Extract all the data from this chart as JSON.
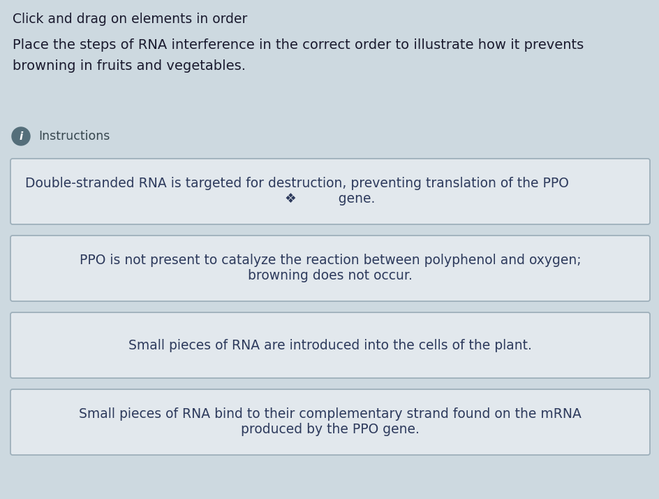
{
  "background_color": "#cdd9e0",
  "title_line1": "Click and drag on elements in order",
  "title_line2": "Place the steps of RNA interference in the correct order to illustrate how it prevents",
  "title_line3": "browning in fruits and vegetables.",
  "instructions_label": "Instructions",
  "cards": [
    {
      "line1": "Double-stranded RNA is targeted for destruction, preventing translation of the PPO",
      "line2": "❖          gene.",
      "text_align": "left",
      "bg_color": "#e2e8ed",
      "border_color": "#9eb0bb",
      "text_color": "#2d3a5c"
    },
    {
      "line1": "PPO is not present to catalyze the reaction between polyphenol and oxygen;",
      "line2": "browning does not occur.",
      "text_align": "center",
      "bg_color": "#e2e8ed",
      "border_color": "#9eb0bb",
      "text_color": "#2d3a5c"
    },
    {
      "line1": "Small pieces of RNA are introduced into the cells of the plant.",
      "line2": null,
      "text_align": "center",
      "bg_color": "#e2e8ed",
      "border_color": "#9eb0bb",
      "text_color": "#2d3a5c"
    },
    {
      "line1": "Small pieces of RNA bind to their complementary strand found on the mRNA",
      "line2": "produced by the PPO gene.",
      "text_align": "center",
      "bg_color": "#e2e8ed",
      "border_color": "#9eb0bb",
      "text_color": "#2d3a5c"
    }
  ],
  "font_size_small_title": 13.5,
  "font_size_title": 14,
  "font_size_card": 13.5,
  "font_size_instructions": 12.5,
  "text_color_title": "#1a1a2e",
  "info_circle_color": "#546e7a",
  "info_text_color": "#37474f"
}
